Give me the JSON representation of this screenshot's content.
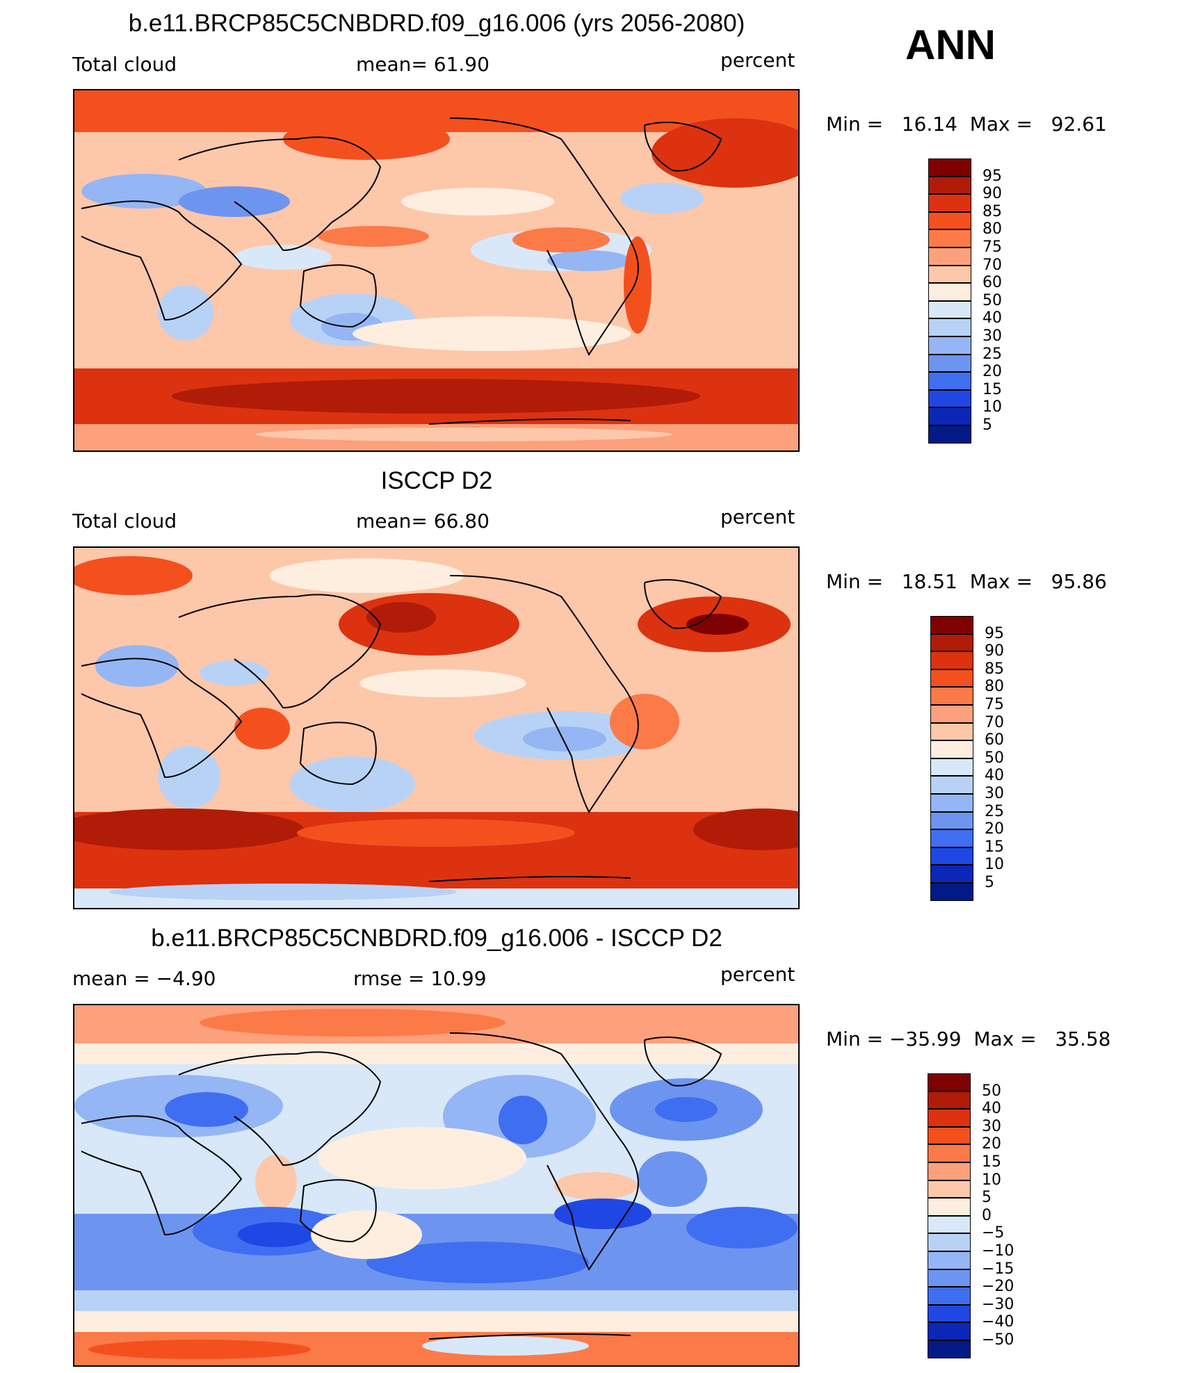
{
  "season": "ANN",
  "panels": [
    {
      "title": "b.e11.BRCP85C5CNBDRD.f09_g16.006 (yrs 2056-2080)",
      "left_label": "Total cloud",
      "center_label": "mean=   61.90",
      "right_label": "percent",
      "minmax": "Min =   16.14  Max =   92.61",
      "colorbar_labels": [
        "95",
        "90",
        "85",
        "80",
        "75",
        "70",
        "60",
        "50",
        "40",
        "30",
        "25",
        "20",
        "15",
        "10",
        "5"
      ]
    },
    {
      "title": "ISCCP D2",
      "left_label": "Total cloud",
      "center_label": "mean=   66.80",
      "right_label": "percent",
      "minmax": "Min =   18.51  Max =   95.86",
      "colorbar_labels": [
        "95",
        "90",
        "85",
        "80",
        "75",
        "70",
        "60",
        "50",
        "40",
        "30",
        "25",
        "20",
        "15",
        "10",
        "5"
      ]
    },
    {
      "title": "b.e11.BRCP85C5CNBDRD.f09_g16.006 - ISCCP D2",
      "left_label": "mean =    −4.90",
      "center_label": "rmse =    10.99",
      "right_label": "percent",
      "minmax": "Min = −35.99  Max =   35.58",
      "colorbar_labels": [
        "50",
        "40",
        "30",
        "20",
        "15",
        "10",
        "5",
        "0",
        "−5",
        "−10",
        "−15",
        "−20",
        "−30",
        "−40",
        "−50"
      ]
    }
  ],
  "colorbar_colors": [
    "#7f0000",
    "#b01c08",
    "#dc3210",
    "#f4501e",
    "#fb7a48",
    "#fca17c",
    "#fdc7aa",
    "#fdeee0",
    "#d8e8f8",
    "#b8d2f6",
    "#94b6f4",
    "#6d95f0",
    "#3f6ef0",
    "#1f47e4",
    "#0b27b8",
    "#021a86"
  ],
  "map_colors": {
    "ocean_warm": "#fdc7aa",
    "land_line": "#000000"
  }
}
